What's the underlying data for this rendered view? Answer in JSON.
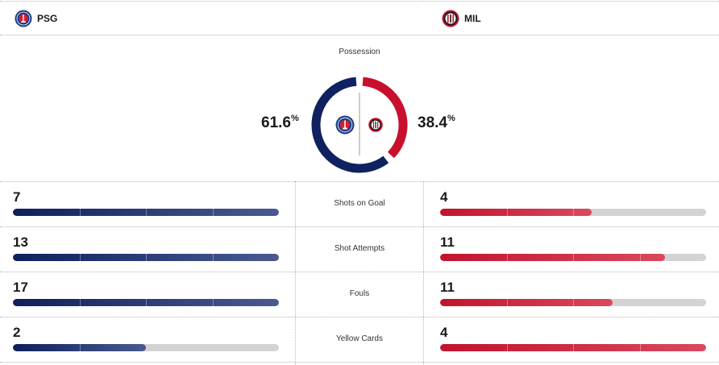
{
  "home": {
    "abbr": "PSG",
    "color": "#0f2161"
  },
  "away": {
    "abbr": "MIL",
    "color": "#c8102e"
  },
  "possession": {
    "title": "Possession",
    "home_value": "61.6",
    "away_value": "38.4",
    "unit": "%",
    "home_share": 0.616
  },
  "stats": [
    {
      "label": "Shots on Goal",
      "home": "7",
      "away": "4",
      "home_fill": 1.0,
      "away_fill": 0.571
    },
    {
      "label": "Shot Attempts",
      "home": "13",
      "away": "11",
      "home_fill": 1.0,
      "away_fill": 0.846
    },
    {
      "label": "Fouls",
      "home": "17",
      "away": "11",
      "home_fill": 1.0,
      "away_fill": 0.647
    },
    {
      "label": "Yellow Cards",
      "home": "2",
      "away": "4",
      "home_fill": 0.5,
      "away_fill": 1.0
    }
  ]
}
